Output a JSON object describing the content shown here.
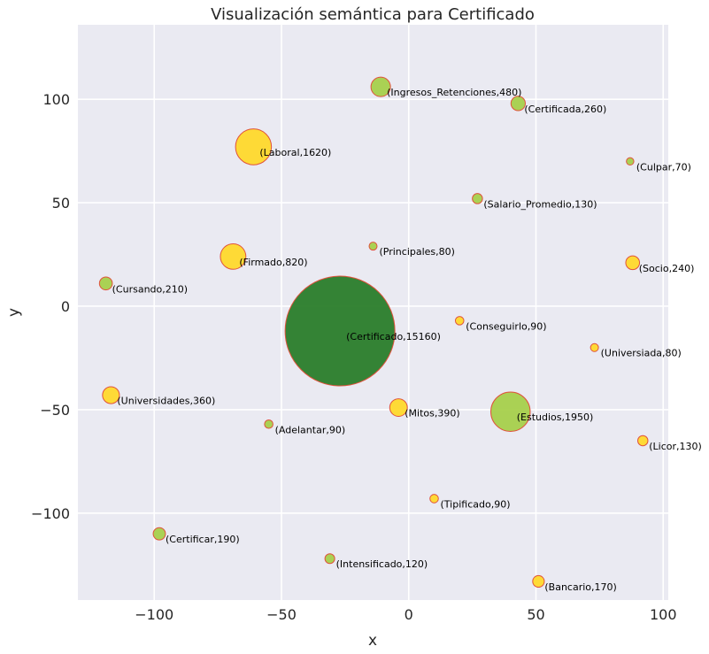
{
  "chart_data": {
    "type": "scatter",
    "title": "Visualización semántica para Certificado",
    "xlabel": "x",
    "ylabel": "y",
    "xlim": [
      -130,
      102
    ],
    "ylim": [
      -142,
      136
    ],
    "xticks": [
      -100,
      -50,
      0,
      50,
      100
    ],
    "yticks": [
      -100,
      -50,
      0,
      50,
      100
    ],
    "xtick_labels": [
      "−100",
      "−50",
      "0",
      "50",
      "100"
    ],
    "ytick_labels": [
      "−100",
      "−50",
      "0",
      "50",
      "100"
    ],
    "grid": true,
    "colors": {
      "background": "#eaeaf2",
      "grid": "#ffffff",
      "edge": "#e0523c",
      "large": "#2a7d2a",
      "medium": "#a6d04b",
      "small": "#ffd92b"
    },
    "points": [
      {
        "label": "(Certificado,15160)",
        "word": "Certificado",
        "count": 15160,
        "x": -27,
        "y": -12,
        "color": "large"
      },
      {
        "label": "(Estudios,1950)",
        "word": "Estudios",
        "count": 1950,
        "x": 40,
        "y": -51,
        "color": "medium"
      },
      {
        "label": "(Laboral,1620)",
        "word": "Laboral",
        "count": 1620,
        "x": -61,
        "y": 77,
        "color": "small"
      },
      {
        "label": "(Firmado,820)",
        "word": "Firmado",
        "count": 820,
        "x": -69,
        "y": 24,
        "color": "small"
      },
      {
        "label": "(Ingresos_Retenciones,480)",
        "word": "Ingresos_Retenciones",
        "count": 480,
        "x": -11,
        "y": 106,
        "color": "medium"
      },
      {
        "label": "(Mitos,390)",
        "word": "Mitos",
        "count": 390,
        "x": -4,
        "y": -49,
        "color": "small"
      },
      {
        "label": "(Universidades,360)",
        "word": "Universidades",
        "count": 360,
        "x": -117,
        "y": -43,
        "color": "small"
      },
      {
        "label": "(Certificada,260)",
        "word": "Certificada",
        "count": 260,
        "x": 43,
        "y": 98,
        "color": "medium"
      },
      {
        "label": "(Socio,240)",
        "word": "Socio",
        "count": 240,
        "x": 88,
        "y": 21,
        "color": "small"
      },
      {
        "label": "(Cursando,210)",
        "word": "Cursando",
        "count": 210,
        "x": -119,
        "y": 11,
        "color": "medium"
      },
      {
        "label": "(Certificar,190)",
        "word": "Certificar",
        "count": 190,
        "x": -98,
        "y": -110,
        "color": "medium"
      },
      {
        "label": "(Bancario,170)",
        "word": "Bancario",
        "count": 170,
        "x": 51,
        "y": -133,
        "color": "small"
      },
      {
        "label": "(Salario_Promedio,130)",
        "word": "Salario_Promedio",
        "count": 130,
        "x": 27,
        "y": 52,
        "color": "medium"
      },
      {
        "label": "(Licor,130)",
        "word": "Licor",
        "count": 130,
        "x": 92,
        "y": -65,
        "color": "small"
      },
      {
        "label": "(Intensificado,120)",
        "word": "Intensificado",
        "count": 120,
        "x": -31,
        "y": -122,
        "color": "medium"
      },
      {
        "label": "(Conseguirlo,90)",
        "word": "Conseguirlo",
        "count": 90,
        "x": 20,
        "y": -7,
        "color": "small"
      },
      {
        "label": "(Adelantar,90)",
        "word": "Adelantar",
        "count": 90,
        "x": -55,
        "y": -57,
        "color": "medium"
      },
      {
        "label": "(Tipificado,90)",
        "word": "Tipificado",
        "count": 90,
        "x": 10,
        "y": -93,
        "color": "small"
      },
      {
        "label": "(Principales,80)",
        "word": "Principales",
        "count": 80,
        "x": -14,
        "y": 29,
        "color": "medium"
      },
      {
        "label": "(Universiada,80)",
        "word": "Universiada",
        "count": 80,
        "x": 73,
        "y": -20,
        "color": "small"
      },
      {
        "label": "(Culpar,70)",
        "word": "Culpar",
        "count": 70,
        "x": 87,
        "y": 70,
        "color": "medium"
      }
    ]
  }
}
